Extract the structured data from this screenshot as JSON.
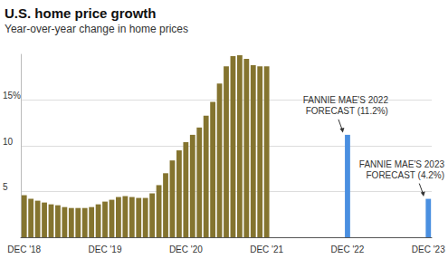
{
  "chart_data": {
    "type": "bar",
    "title": "U.S. home price growth",
    "subtitle": "Year-over-year change in home prices",
    "categories": [
      "DEC '18",
      null,
      null,
      null,
      null,
      null,
      null,
      null,
      null,
      null,
      null,
      null,
      "DEC '19",
      null,
      null,
      null,
      null,
      null,
      null,
      null,
      null,
      null,
      null,
      null,
      "DEC '20",
      null,
      null,
      null,
      null,
      null,
      null,
      null,
      null,
      null,
      null,
      null,
      "DEC '21",
      null,
      null,
      null,
      null,
      null,
      null,
      null,
      null,
      null,
      null,
      null,
      "DEC '22",
      null,
      null,
      null,
      null,
      null,
      null,
      null,
      null,
      null,
      null,
      null,
      "DEC '23"
    ],
    "values": [
      4.6,
      4.2,
      4.0,
      3.8,
      3.6,
      3.5,
      3.3,
      3.2,
      3.2,
      3.2,
      3.3,
      3.6,
      3.9,
      4.1,
      4.4,
      4.5,
      4.4,
      4.3,
      4.3,
      4.8,
      5.7,
      7.0,
      8.4,
      9.5,
      10.4,
      11.2,
      12.0,
      13.3,
      14.8,
      16.8,
      18.7,
      19.8,
      19.9,
      19.5,
      18.8,
      18.7,
      18.7,
      null,
      null,
      null,
      null,
      null,
      null,
      null,
      null,
      null,
      null,
      null,
      11.2,
      null,
      null,
      null,
      null,
      null,
      null,
      null,
      null,
      null,
      null,
      null,
      4.2
    ],
    "colors": [
      "#84742f",
      "#84742f",
      "#84742f",
      "#84742f",
      "#84742f",
      "#84742f",
      "#84742f",
      "#84742f",
      "#84742f",
      "#84742f",
      "#84742f",
      "#84742f",
      "#84742f",
      "#84742f",
      "#84742f",
      "#84742f",
      "#84742f",
      "#84742f",
      "#84742f",
      "#84742f",
      "#84742f",
      "#84742f",
      "#84742f",
      "#84742f",
      "#84742f",
      "#84742f",
      "#84742f",
      "#84742f",
      "#84742f",
      "#84742f",
      "#84742f",
      "#84742f",
      "#84742f",
      "#84742f",
      "#84742f",
      "#84742f",
      "#84742f",
      null,
      null,
      null,
      null,
      null,
      null,
      null,
      null,
      null,
      null,
      null,
      "#4a8fe0",
      null,
      null,
      null,
      null,
      null,
      null,
      null,
      null,
      null,
      null,
      null,
      "#4a8fe0"
    ],
    "ylim": [
      0,
      20
    ],
    "yticks": [
      5,
      10,
      {
        "value": 15,
        "label": "15%"
      }
    ],
    "grid": true,
    "annotations": [
      {
        "text": "FANNIE MAE'S 2022\nFORECAST (11.2%)",
        "x": "DEC '22"
      },
      {
        "text": "FANNIE MAE'S 2023\nFORECAST (4.2%)",
        "x": "DEC '23"
      }
    ]
  }
}
